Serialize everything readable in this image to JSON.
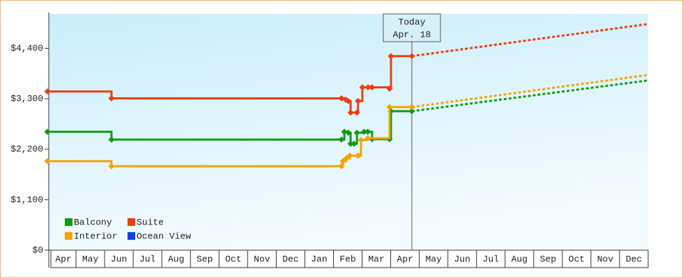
{
  "chart_data": {
    "type": "step-line",
    "categories": [
      "Apr",
      "May",
      "Jun",
      "Jul",
      "Aug",
      "Sep",
      "Oct",
      "Nov",
      "Dec",
      "Jan",
      "Feb",
      "Mar",
      "Apr",
      "May",
      "Jun",
      "Jul",
      "Aug",
      "Sep",
      "Oct",
      "Nov",
      "Dec"
    ],
    "xlim": [
      0,
      21
    ],
    "ylim": [
      0,
      5150
    ],
    "yticks": [
      {
        "value": 0,
        "label": "$0"
      },
      {
        "value": 1100,
        "label": "$1,100"
      },
      {
        "value": 2200,
        "label": "$2,200"
      },
      {
        "value": 3300,
        "label": "$3,300"
      },
      {
        "value": 4400,
        "label": "$4,400"
      }
    ],
    "today": {
      "title": "Today",
      "date": "Apr. 18",
      "x": 12.74
    },
    "series": [
      {
        "name": "Balcony",
        "color": "#129a12",
        "x": [
          0,
          2.24,
          10.28,
          10.38,
          10.52,
          10.6,
          10.72,
          10.82,
          11.07,
          11.2,
          11.35,
          11.96,
          12.01,
          12.74
        ],
        "values": [
          2580,
          2410,
          2410,
          2580,
          2560,
          2320,
          2320,
          2560,
          2580,
          2580,
          2420,
          2420,
          3030,
          3030
        ],
        "forecast_x": [
          12.74,
          21
        ],
        "forecast_values": [
          3030,
          3700
        ]
      },
      {
        "name": "Suite",
        "color": "#f03c10",
        "x": [
          0,
          2.24,
          10.28,
          10.43,
          10.52,
          10.6,
          10.82,
          10.86,
          11.01,
          11.21,
          11.35,
          11.96,
          12.01,
          12.74
        ],
        "values": [
          3460,
          3310,
          3310,
          3280,
          3250,
          3000,
          3000,
          3250,
          3550,
          3550,
          3550,
          3520,
          4230,
          4230
        ],
        "forecast_x": [
          12.74,
          21
        ],
        "forecast_values": [
          4230,
          4930
        ]
      },
      {
        "name": "Interior",
        "color": "#f5a300",
        "x": [
          0,
          2.24,
          10.28,
          10.33,
          10.45,
          10.57,
          10.86,
          10.96,
          11.2,
          11.96,
          12.74
        ],
        "values": [
          1940,
          1830,
          1830,
          1940,
          2000,
          2060,
          2060,
          2400,
          2440,
          3120,
          3120
        ],
        "forecast_x": [
          12.74,
          21
        ],
        "forecast_values": [
          3120,
          3820
        ]
      },
      {
        "name": "Ocean View",
        "color": "#1040f0",
        "x": [],
        "values": [],
        "forecast_x": [],
        "forecast_values": []
      }
    ]
  }
}
